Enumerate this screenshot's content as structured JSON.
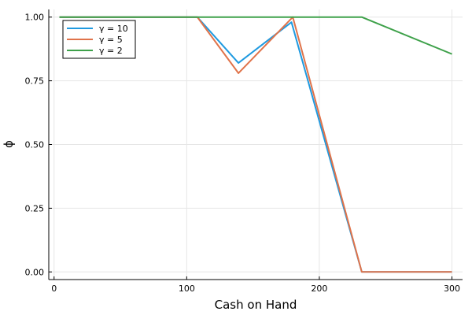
{
  "chart_data": {
    "type": "line",
    "xlabel": "Cash on Hand",
    "ylabel": "ϕ",
    "xlim": [
      -4,
      308
    ],
    "ylim": [
      -0.03,
      1.03
    ],
    "xticks": [
      0,
      100,
      200,
      300
    ],
    "xtick_labels": [
      "0",
      "100",
      "200",
      "300"
    ],
    "yticks": [
      0,
      0.25,
      0.5,
      0.75,
      1.0
    ],
    "ytick_labels": [
      "0.00",
      "0.25",
      "0.50",
      "0.75",
      "1.00"
    ],
    "grid": true,
    "legend_position": "top-left",
    "series": [
      {
        "name": "γ = 10",
        "color": "#1f9ae0",
        "x": [
          4,
          108,
          139,
          179,
          232,
          300
        ],
        "y": [
          1.0,
          1.0,
          0.82,
          0.98,
          0.0,
          0.0
        ]
      },
      {
        "name": "γ = 5",
        "color": "#e0734a",
        "x": [
          4,
          108,
          139,
          180,
          232,
          300
        ],
        "y": [
          1.0,
          1.0,
          0.78,
          1.0,
          0.0,
          0.0
        ]
      },
      {
        "name": "γ = 2",
        "color": "#3ea14a",
        "x": [
          4,
          108,
          232,
          300
        ],
        "y": [
          1.0,
          1.0,
          1.0,
          0.855
        ]
      }
    ]
  }
}
